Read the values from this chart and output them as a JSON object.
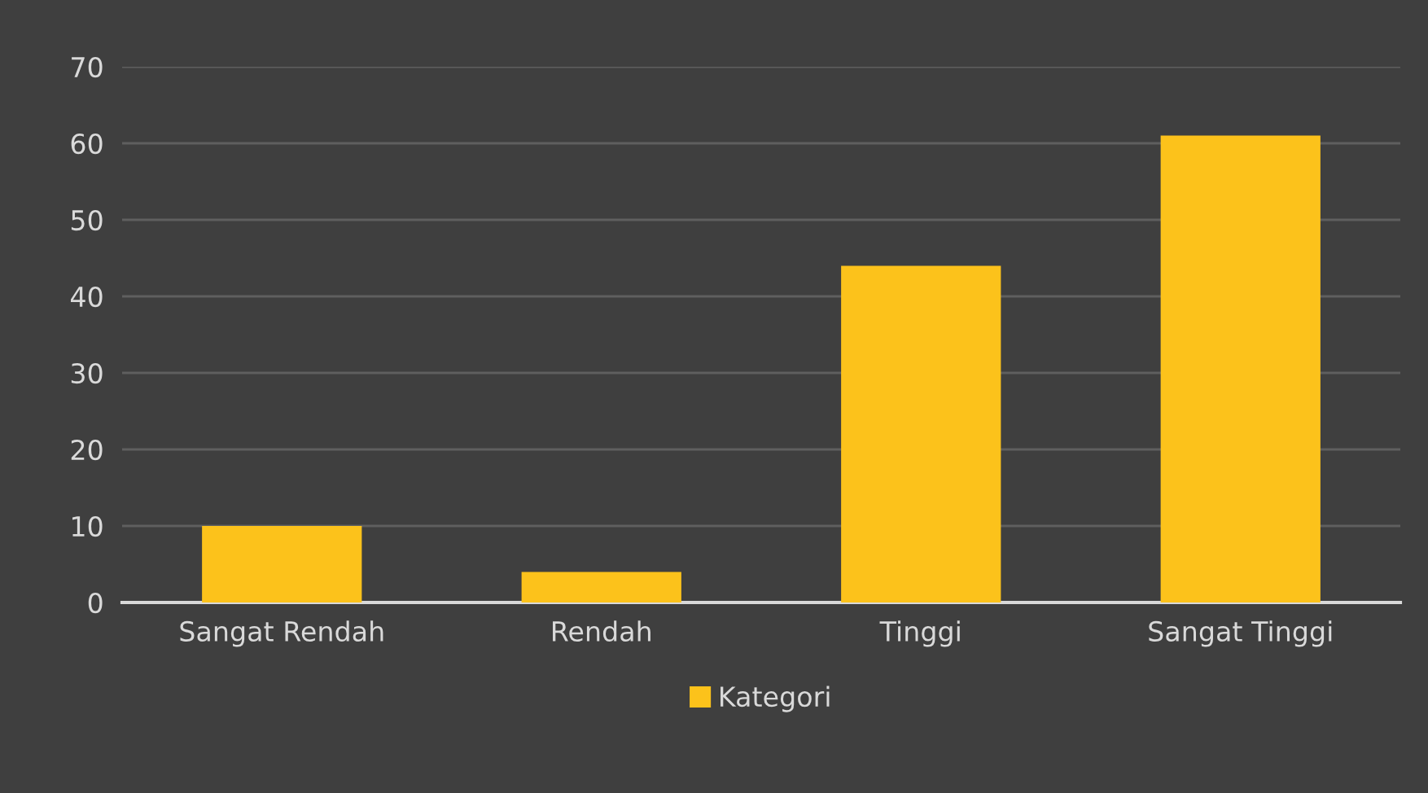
{
  "chart_data": {
    "type": "bar",
    "categories": [
      "Sangat Rendah",
      "Rendah",
      "Tinggi",
      "Sangat Tinggi"
    ],
    "series": [
      {
        "name": "Kategori",
        "color": "#fcc21b",
        "values": [
          10,
          4,
          44,
          61
        ]
      }
    ],
    "ylim": [
      0,
      70
    ],
    "yticks": [
      0,
      10,
      20,
      30,
      40,
      50,
      60,
      70
    ],
    "grid": "y",
    "legend": "bottom"
  }
}
